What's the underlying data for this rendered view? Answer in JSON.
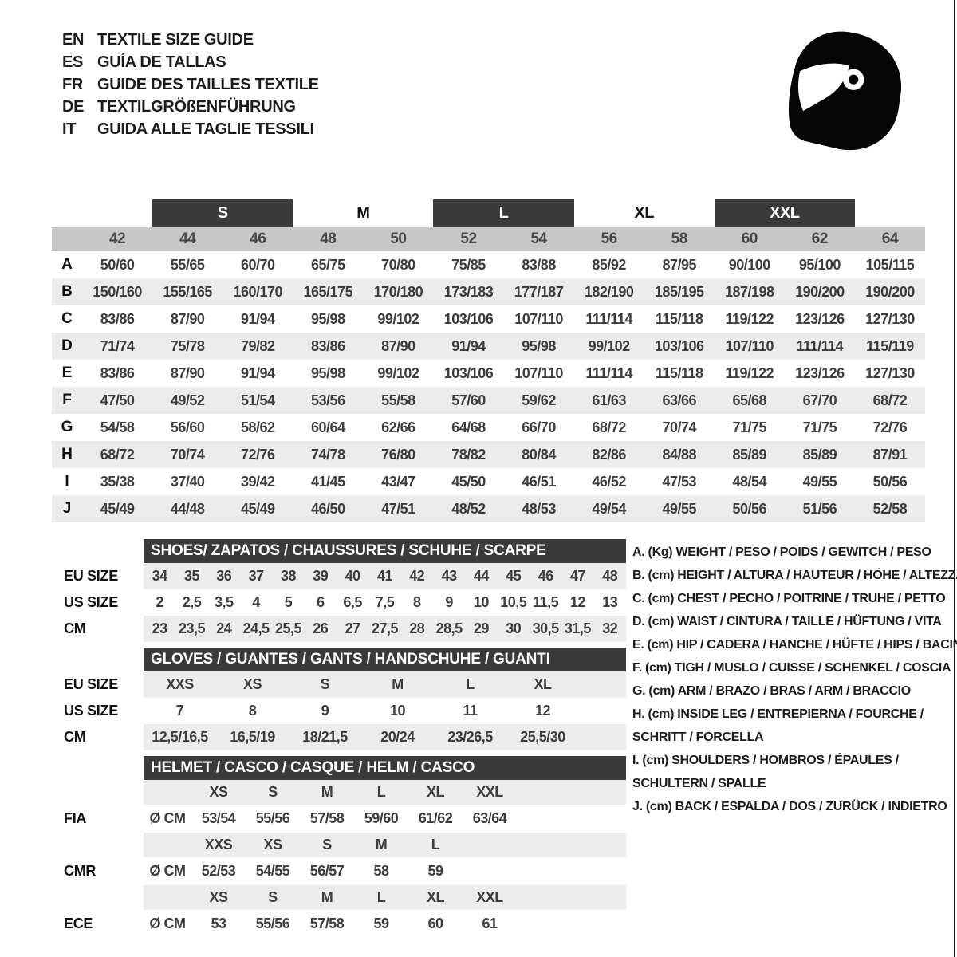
{
  "colors": {
    "dark_bar": "#3a3a3a",
    "number_band": "#c7c7c7",
    "row_stripe": "#ececec",
    "edge_line": "#1a1a1a",
    "text": "#3d3d3d"
  },
  "header": {
    "languages": [
      {
        "code": "EN",
        "title": "TEXTILE SIZE GUIDE"
      },
      {
        "code": "ES",
        "title": "GUÍA DE TALLAS"
      },
      {
        "code": "FR",
        "title": "GUIDE DES TAILLES TEXTILE"
      },
      {
        "code": "DE",
        "title": "TEXTILGRÖßENFÜHRUNG"
      },
      {
        "code": "IT",
        "title": "GUIDA ALLE TAGLIE TESSILI"
      }
    ],
    "icon": "full-face-helmet"
  },
  "main_size_table": {
    "header_sizes": [
      {
        "label": "S",
        "style": "dark"
      },
      {
        "label": "M",
        "style": "plain"
      },
      {
        "label": "L",
        "style": "dark"
      },
      {
        "label": "XL",
        "style": "plain"
      },
      {
        "label": "XXL",
        "style": "dark"
      }
    ],
    "columns": [
      "42",
      "44",
      "46",
      "48",
      "50",
      "52",
      "54",
      "56",
      "58",
      "60",
      "62",
      "64"
    ],
    "rows": [
      {
        "label": "A",
        "values": [
          "50/60",
          "55/65",
          "60/70",
          "65/75",
          "70/80",
          "75/85",
          "83/88",
          "85/92",
          "87/95",
          "90/100",
          "95/100",
          "105/115"
        ]
      },
      {
        "label": "B",
        "values": [
          "150/160",
          "155/165",
          "160/170",
          "165/175",
          "170/180",
          "173/183",
          "177/187",
          "182/190",
          "185/195",
          "187/198",
          "190/200",
          "190/200"
        ]
      },
      {
        "label": "C",
        "values": [
          "83/86",
          "87/90",
          "91/94",
          "95/98",
          "99/102",
          "103/106",
          "107/110",
          "111/114",
          "115/118",
          "119/122",
          "123/126",
          "127/130"
        ]
      },
      {
        "label": "D",
        "values": [
          "71/74",
          "75/78",
          "79/82",
          "83/86",
          "87/90",
          "91/94",
          "95/98",
          "99/102",
          "103/106",
          "107/110",
          "111/114",
          "115/119"
        ]
      },
      {
        "label": "E",
        "values": [
          "83/86",
          "87/90",
          "91/94",
          "95/98",
          "99/102",
          "103/106",
          "107/110",
          "111/114",
          "115/118",
          "119/122",
          "123/126",
          "127/130"
        ]
      },
      {
        "label": "F",
        "values": [
          "47/50",
          "49/52",
          "51/54",
          "53/56",
          "55/58",
          "57/60",
          "59/62",
          "61/63",
          "63/66",
          "65/68",
          "67/70",
          "68/72"
        ]
      },
      {
        "label": "G",
        "values": [
          "54/58",
          "56/60",
          "58/62",
          "60/64",
          "62/66",
          "64/68",
          "66/70",
          "68/72",
          "70/74",
          "71/75",
          "71/75",
          "72/76"
        ]
      },
      {
        "label": "H",
        "values": [
          "68/72",
          "70/74",
          "72/76",
          "74/78",
          "76/80",
          "78/82",
          "80/84",
          "82/86",
          "84/88",
          "85/89",
          "85/89",
          "87/91"
        ]
      },
      {
        "label": "I",
        "values": [
          "35/38",
          "37/40",
          "39/42",
          "41/45",
          "43/47",
          "45/50",
          "46/51",
          "46/52",
          "47/53",
          "48/54",
          "49/55",
          "50/56"
        ]
      },
      {
        "label": "J",
        "values": [
          "45/49",
          "44/48",
          "45/49",
          "46/50",
          "47/51",
          "48/52",
          "48/53",
          "49/54",
          "49/55",
          "50/56",
          "51/56",
          "52/58"
        ]
      }
    ]
  },
  "shoes_table": {
    "title": "SHOES/ ZAPATOS / CHAUSSURES / SCHUHE / SCARPE",
    "rows": [
      {
        "label": "EU SIZE",
        "shade": true,
        "values": [
          "34",
          "35",
          "36",
          "37",
          "38",
          "39",
          "40",
          "41",
          "42",
          "43",
          "44",
          "45",
          "46",
          "47",
          "48"
        ]
      },
      {
        "label": "US SIZE",
        "shade": false,
        "values": [
          "2",
          "2,5",
          "3,5",
          "4",
          "5",
          "6",
          "6,5",
          "7,5",
          "8",
          "9",
          "10",
          "10,5",
          "11,5",
          "12",
          "13"
        ]
      },
      {
        "label": "CM",
        "shade": true,
        "values": [
          "23",
          "23,5",
          "24",
          "24,5",
          "25,5",
          "26",
          "27",
          "27,5",
          "28",
          "28,5",
          "29",
          "30",
          "30,5",
          "31,5",
          "32"
        ]
      }
    ]
  },
  "gloves_table": {
    "title": "GLOVES / GUANTES / GANTS / HANDSCHUHE / GUANTI",
    "rows": [
      {
        "label": "EU SIZE",
        "shade": true,
        "values": [
          "XXS",
          "XS",
          "S",
          "M",
          "L",
          "XL"
        ]
      },
      {
        "label": "US SIZE",
        "shade": false,
        "values": [
          "7",
          "8",
          "9",
          "10",
          "11",
          "12"
        ]
      },
      {
        "label": "CM",
        "shade": true,
        "values": [
          "12,5/16,5",
          "16,5/19",
          "18/21,5",
          "20/24",
          "23/26,5",
          "25,5/30"
        ]
      }
    ]
  },
  "helmet_table": {
    "title": "HELMET / CASCO / CASQUE / HELM / CASCO",
    "unit": "Ø CM",
    "groups": [
      {
        "label": "FIA",
        "sizes": [
          "XS",
          "S",
          "M",
          "L",
          "XL",
          "XXL"
        ],
        "values": [
          "53/54",
          "55/56",
          "57/58",
          "59/60",
          "61/62",
          "63/64"
        ]
      },
      {
        "label": "CMR",
        "sizes": [
          "XXS",
          "XS",
          "S",
          "M",
          "L",
          ""
        ],
        "values": [
          "52/53",
          "54/55",
          "56/57",
          "58",
          "59",
          ""
        ]
      },
      {
        "label": "ECE",
        "sizes": [
          "XS",
          "S",
          "M",
          "L",
          "XL",
          "XXL"
        ],
        "values": [
          "53",
          "55/56",
          "57/58",
          "59",
          "60",
          "61"
        ]
      }
    ]
  },
  "legend": {
    "items": [
      {
        "lines": [
          "A. (Kg) WEIGHT / PESO / POIDS / GEWITCH / PESO"
        ]
      },
      {
        "lines": [
          "B. (cm) HEIGHT / ALTURA / HAUTEUR / HÖHE / ALTEZZA"
        ]
      },
      {
        "lines": [
          "C. (cm) CHEST / PECHO / POITRINE / TRUHE / PETTO"
        ]
      },
      {
        "lines": [
          "D. (cm) WAIST / CINTURA / TAILLE / HÜFTUNG / VITA"
        ]
      },
      {
        "lines": [
          "E. (cm) HIP / CADERA / HANCHE / HÜFTE / HIPS / BACINO"
        ]
      },
      {
        "lines": [
          "F. (cm) TIGH / MUSLO / CUISSE / SCHENKEL / COSCIA"
        ]
      },
      {
        "lines": [
          "G. (cm) ARM / BRAZO / BRAS / ARM / BRACCIO"
        ]
      },
      {
        "lines": [
          "H. (cm) INSIDE LEG / ENTREPIERNA / FOURCHE /",
          "SCHRITT / FORCELLA"
        ]
      },
      {
        "lines": [
          "I. (cm) SHOULDERS / HOMBROS / ÉPAULES /",
          "SCHULTERN / SPALLE"
        ]
      },
      {
        "lines": [
          "J. (cm) BACK / ESPALDA / DOS / ZURÜCK / INDIETRO"
        ]
      }
    ]
  }
}
